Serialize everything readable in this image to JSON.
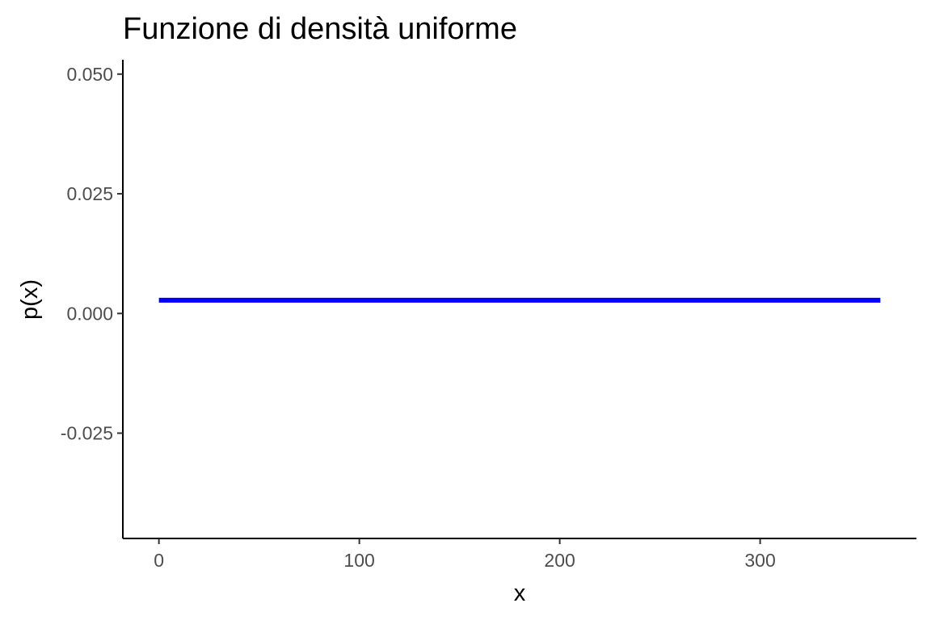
{
  "chart_data": {
    "type": "line",
    "title": "Funzione di densità uniforme",
    "xlabel": "x",
    "ylabel": "p(x)",
    "xlim": [
      -18,
      378
    ],
    "ylim": [
      -0.047,
      0.053
    ],
    "x_ticks": [
      0,
      100,
      200,
      300
    ],
    "x_tick_labels": [
      "0",
      "100",
      "200",
      "300"
    ],
    "y_ticks": [
      -0.025,
      0,
      0.025,
      0.05
    ],
    "y_tick_labels": [
      "-0.025",
      "0.000",
      "0.025",
      "0.050"
    ],
    "grid": false,
    "series": [
      {
        "color": "#0000ff",
        "x": [
          0,
          360
        ],
        "y": [
          0.002777778,
          0.002777778
        ]
      }
    ]
  }
}
